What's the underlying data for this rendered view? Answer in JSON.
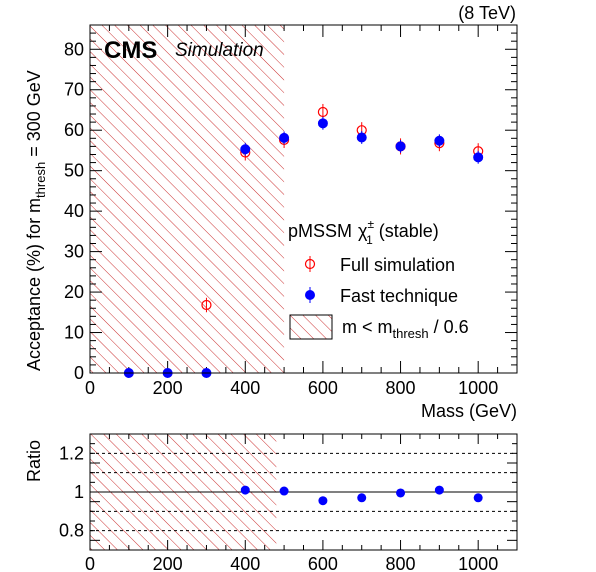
{
  "header": {
    "energy_label": "(8 TeV)",
    "cms_label": "CMS",
    "simulation_label": "Simulation"
  },
  "legend": {
    "title": "pMSSM",
    "title_particle": "χ",
    "title_sub": "1",
    "title_sup": "±",
    "title_suffix": "(stable)",
    "full_sim": "Full simulation",
    "fast_tech": "Fast technique",
    "region_prefix": "m < m",
    "region_sub": "thresh",
    "region_suffix": "/ 0.6"
  },
  "colors": {
    "full_sim": "#ff0000",
    "fast_tech": "#0000ff",
    "hatch": "#cc3333",
    "grid": "#000000"
  },
  "chart_data": [
    {
      "type": "scatter",
      "title": "",
      "xlabel": "Mass (GeV)",
      "ylabel_prefix": "Acceptance (%) for m",
      "ylabel_sub": "thresh",
      "ylabel_suffix": " = 300 GeV",
      "xlim": [
        0,
        1100
      ],
      "ylim": [
        0,
        86
      ],
      "xticks": [
        0,
        200,
        400,
        600,
        800,
        1000
      ],
      "yticks": [
        0,
        10,
        20,
        30,
        40,
        50,
        60,
        70,
        80
      ],
      "hatched_region": [
        0,
        500
      ],
      "legend_position": "middle-right",
      "series": [
        {
          "name": "Full simulation",
          "marker": "open-circle",
          "x": [
            300,
            400,
            500,
            600,
            700,
            800,
            900,
            1000
          ],
          "y": [
            16.8,
            54.5,
            57.6,
            64.5,
            60.0,
            56.0,
            56.8,
            54.8
          ],
          "err": [
            0.8,
            1.0,
            1.0,
            1.0,
            1.0,
            1.0,
            1.0,
            1.0
          ]
        },
        {
          "name": "Fast technique",
          "marker": "filled-circle",
          "x": [
            100,
            200,
            300,
            400,
            500,
            600,
            700,
            800,
            900,
            1000
          ],
          "y": [
            0,
            0,
            0,
            55.3,
            58.1,
            61.7,
            58.2,
            56.0,
            57.4,
            53.3
          ],
          "err": [
            0,
            0,
            0,
            0.6,
            0.6,
            0.6,
            0.6,
            0.6,
            0.6,
            0.6
          ]
        }
      ]
    },
    {
      "type": "scatter",
      "title": "",
      "xlabel": "",
      "ylabel": "Ratio",
      "xlim": [
        0,
        1100
      ],
      "ylim": [
        0.7,
        1.3
      ],
      "xticks": [
        0,
        200,
        400,
        600,
        800,
        1000
      ],
      "yticks": [
        0.8,
        1,
        1.2
      ],
      "ytick_labels": [
        "0.8",
        "1",
        "1.2"
      ],
      "grid_y": [
        0.8,
        0.9,
        1.0,
        1.1,
        1.2
      ],
      "hatched_region": [
        0,
        480
      ],
      "series": [
        {
          "name": "",
          "marker": "filled-circle",
          "x": [
            400,
            500,
            600,
            700,
            800,
            900,
            1000
          ],
          "y": [
            1.01,
            1.005,
            0.955,
            0.97,
            0.995,
            1.01,
            0.97
          ]
        }
      ]
    }
  ]
}
